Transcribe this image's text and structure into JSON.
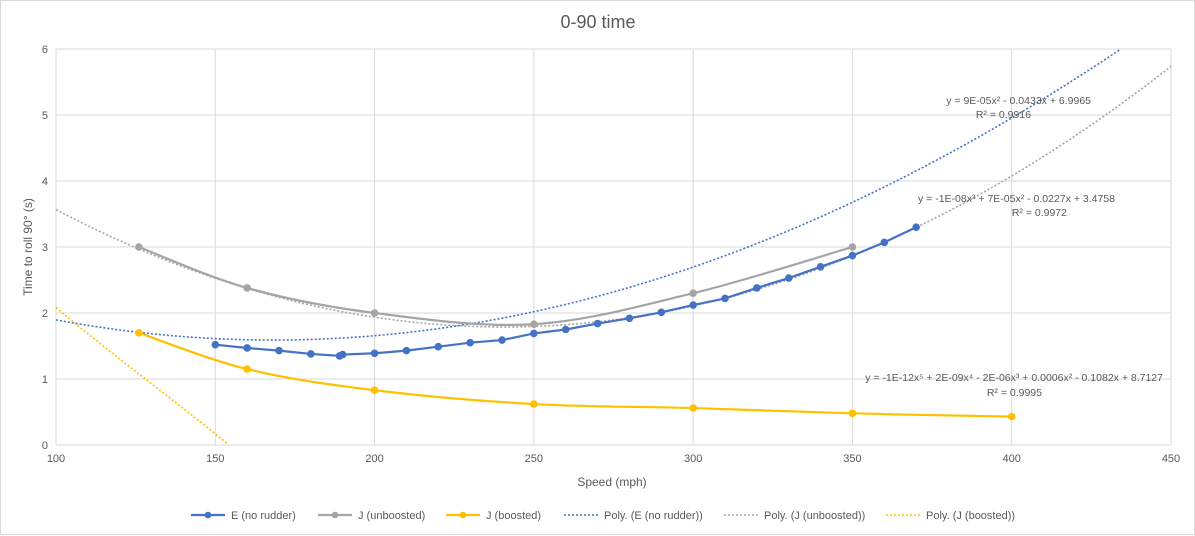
{
  "chart_data": {
    "type": "line",
    "title": "0-90 time",
    "xlabel": "Speed (mph)",
    "ylabel": "Time to roll 90° (s)",
    "xlim": [
      100,
      450
    ],
    "ylim": [
      0,
      6
    ],
    "xticks": [
      100,
      150,
      200,
      250,
      300,
      350,
      400,
      450
    ],
    "yticks": [
      0,
      1,
      2,
      3,
      4,
      5,
      6
    ],
    "grid": true,
    "legend_position": "bottom",
    "series": [
      {
        "name": "E (no rudder)",
        "color": "#4472c4",
        "style": "solid-markers",
        "x": [
          150,
          160,
          170,
          180,
          189,
          190,
          200,
          210,
          220,
          230,
          240,
          250,
          260,
          270,
          280,
          290,
          300,
          310,
          320,
          330,
          340,
          350,
          360,
          370
        ],
        "y": [
          1.52,
          1.47,
          1.43,
          1.38,
          1.35,
          1.37,
          1.39,
          1.43,
          1.49,
          1.55,
          1.59,
          1.69,
          1.75,
          1.84,
          1.92,
          2.01,
          2.12,
          2.22,
          2.38,
          2.53,
          2.7,
          2.87,
          3.07,
          3.3
        ]
      },
      {
        "name": "J (unboosted)",
        "color": "#a5a5a5",
        "style": "smooth-markers",
        "x": [
          126,
          160,
          200,
          250,
          300,
          350
        ],
        "y": [
          3.0,
          2.38,
          2.0,
          1.83,
          2.3,
          3.0
        ]
      },
      {
        "name": "J (boosted)",
        "color": "#ffc000",
        "style": "smooth-markers",
        "x": [
          126,
          160,
          200,
          250,
          300,
          350,
          400
        ],
        "y": [
          1.7,
          1.15,
          0.83,
          0.62,
          0.56,
          0.48,
          0.43
        ]
      }
    ],
    "trendlines": [
      {
        "name": "Poly. (E (no rudder))",
        "color": "#4472c4",
        "coefficients": [
          3.4758,
          -0.0227,
          7e-05,
          -1e-08
        ],
        "equation": "y = -1E-08x³ + 7E-05x² - 0.0227x + 3.4758",
        "r2": "R² = 0.9972"
      },
      {
        "name": "Poly. (J (unboosted))",
        "color": "#a5a5a5",
        "coefficients": [
          6.9965,
          -0.0433,
          9e-05
        ],
        "equation": "y = 9E-05x² - 0.0433x + 6.9965",
        "r2": "R² = 0.9916"
      },
      {
        "name": "Poly. (J (boosted))",
        "color": "#ffc000",
        "coefficients": [
          8.7127,
          -0.1082,
          0.0006,
          -2e-06,
          2e-09,
          -1e-12
        ],
        "equation": "y = -1E-12x⁵ + 2E-09x⁴ - 2E-06x³ + 0.0006x² - 0.1082x + 8.7127",
        "r2": "R² = 0.9995"
      }
    ]
  }
}
